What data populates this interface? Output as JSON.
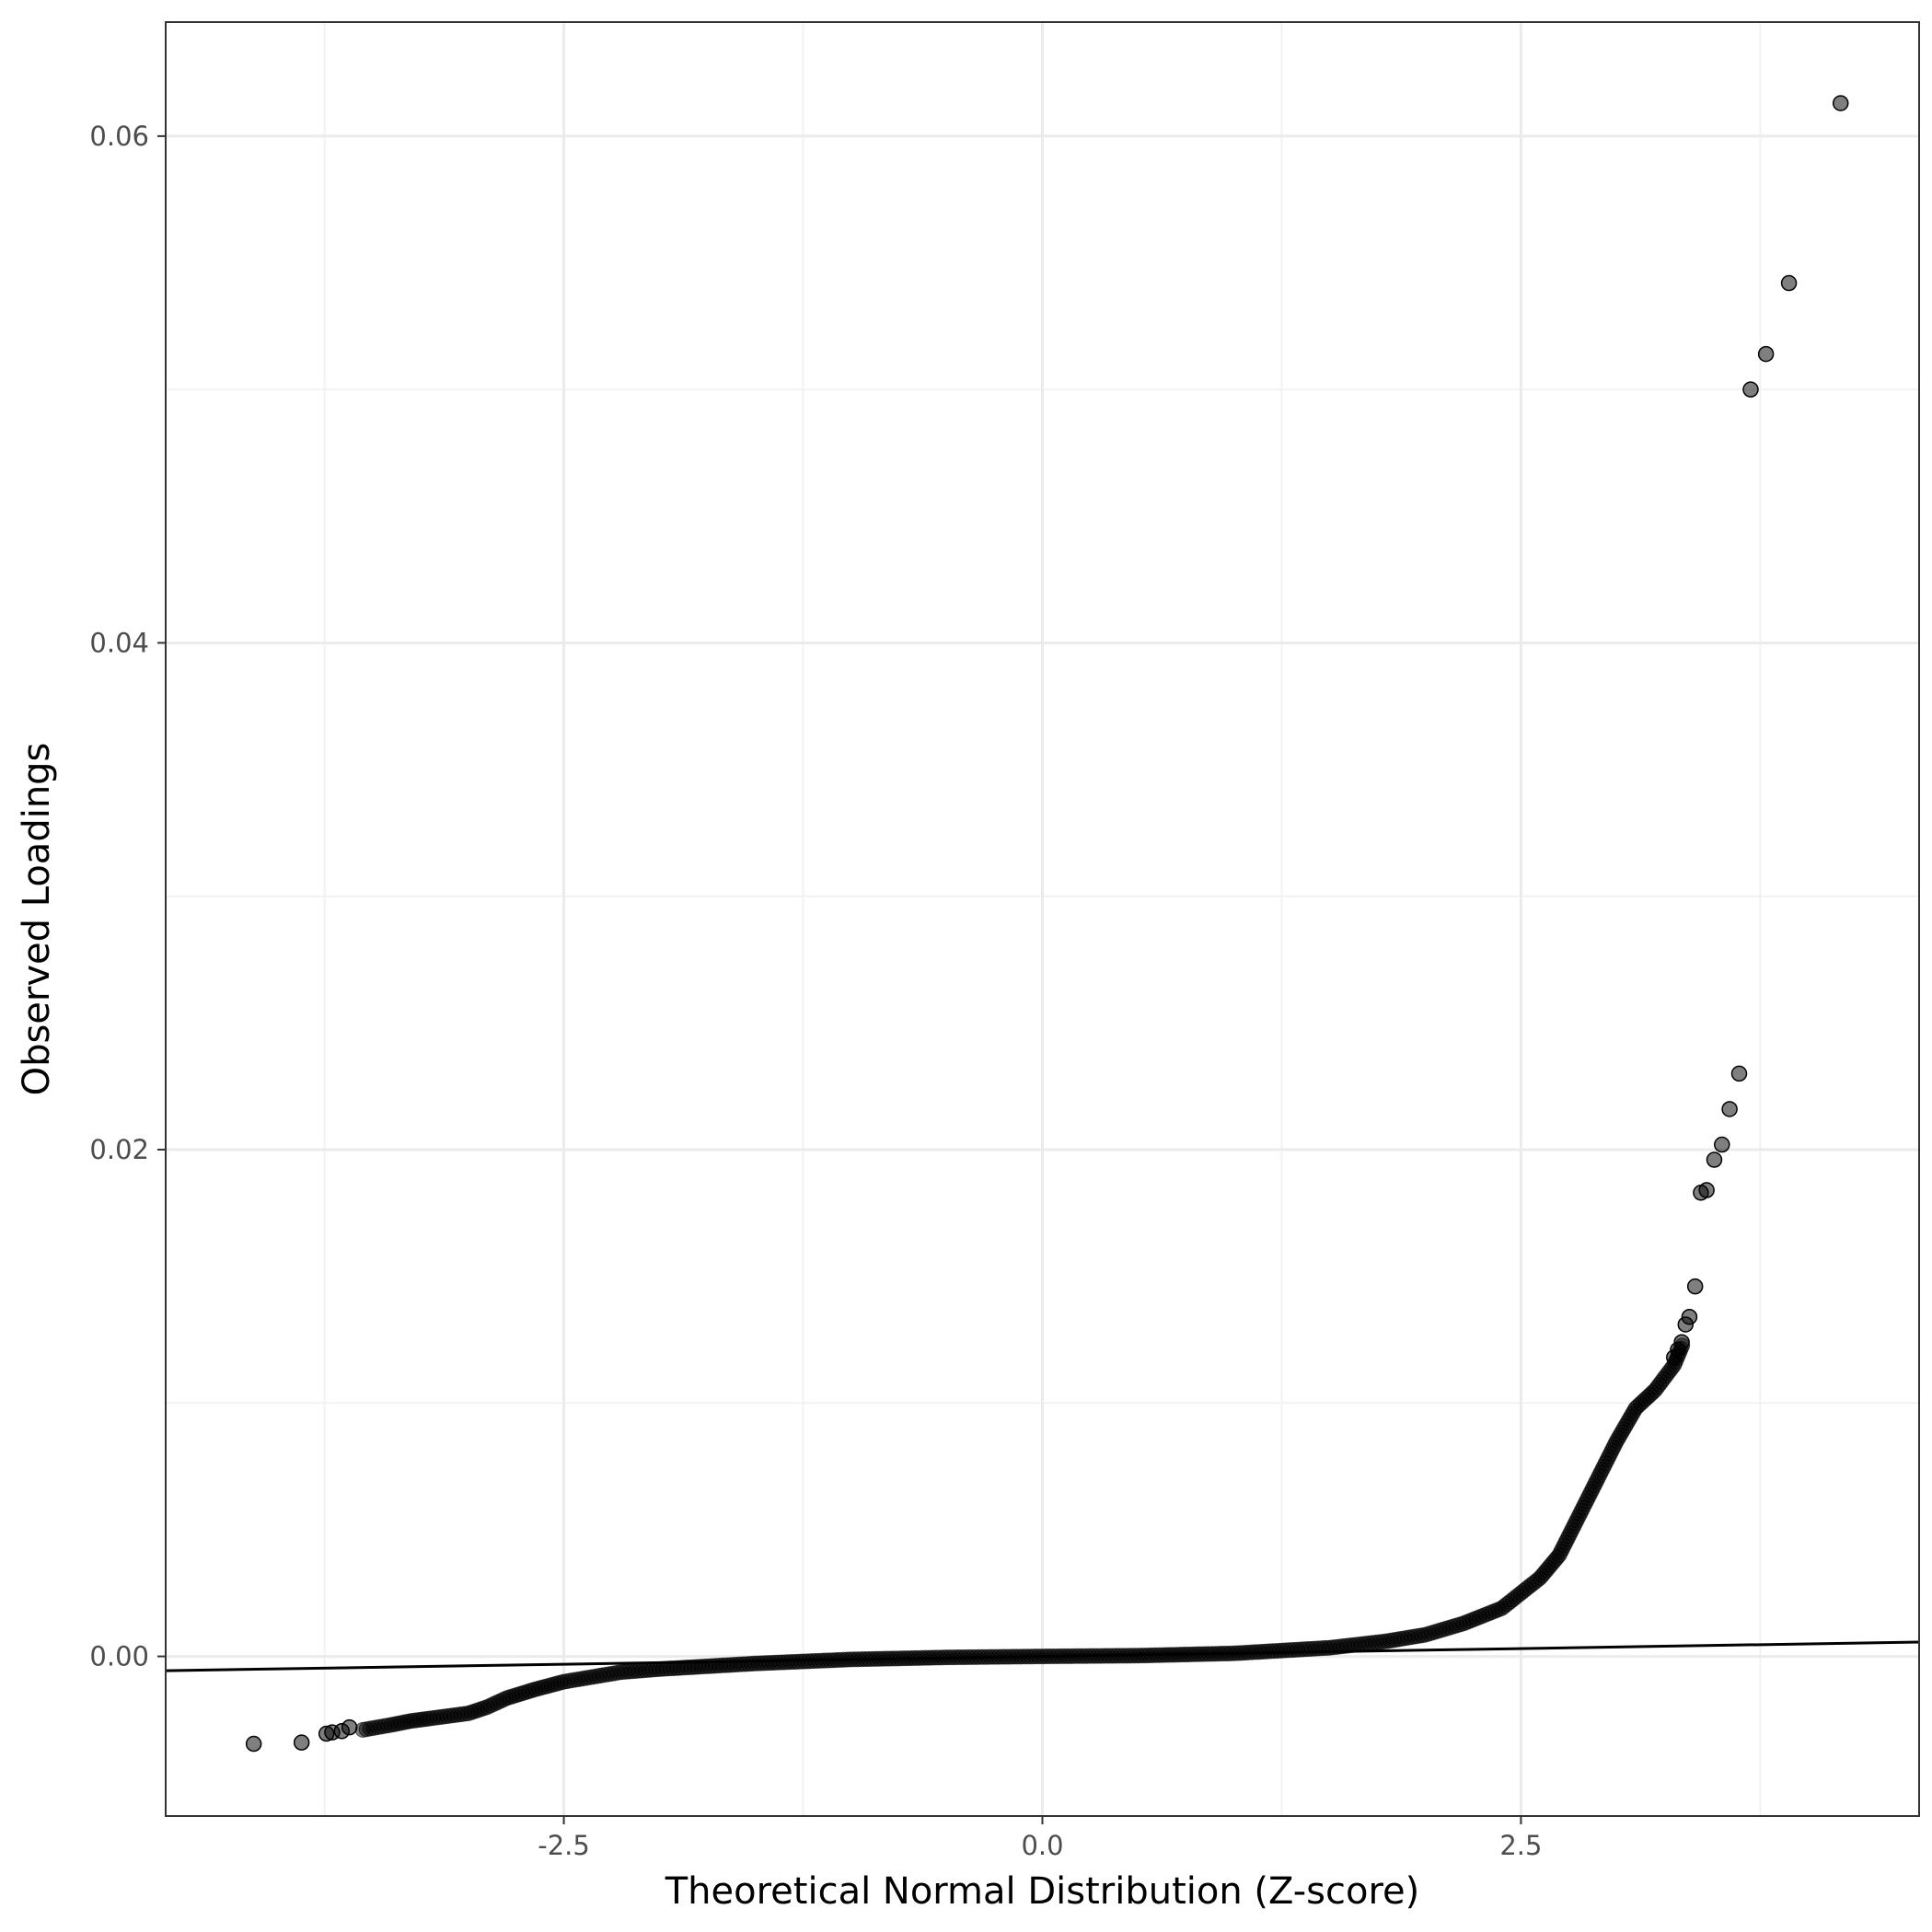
{
  "chart_data": {
    "type": "scatter",
    "title": "",
    "xlabel": "Theoretical Normal Distribution (Z-score)",
    "ylabel": "Observed Loadings",
    "xlim": [
      -4.58,
      4.58
    ],
    "ylim": [
      -0.0063,
      0.0645
    ],
    "x_ticks": [
      -2.5,
      0.0,
      2.5
    ],
    "x_tick_labels": [
      "-2.5",
      "0.0",
      "2.5"
    ],
    "y_ticks": [
      0.0,
      0.02,
      0.04,
      0.06
    ],
    "y_tick_labels": [
      "0.00",
      "0.02",
      "0.04",
      "0.06"
    ],
    "grid": true,
    "legend": "none",
    "colors": {
      "points": "#000000",
      "point_alpha": 0.5,
      "reference_line": "#000000",
      "grid_major": "#ebebeb",
      "grid_minor": "#f2f2f2",
      "panel_border": "#333333"
    },
    "reference_line": {
      "slope": 0.0001235,
      "intercept": 0.0
    },
    "curve_points": [
      [
        -3.55,
        -0.0029
      ],
      [
        -3.4,
        -0.0027
      ],
      [
        -3.3,
        -0.00255
      ],
      [
        -3.2,
        -0.00245
      ],
      [
        -3.0,
        -0.00225
      ],
      [
        -2.9,
        -0.002
      ],
      [
        -2.8,
        -0.00165
      ],
      [
        -2.65,
        -0.0013
      ],
      [
        -2.5,
        -0.001
      ],
      [
        -2.2,
        -0.00062
      ],
      [
        -2.0,
        -0.0005
      ],
      [
        -1.5,
        -0.00028
      ],
      [
        -1.0,
        -0.00012
      ],
      [
        -0.5,
        -4e-05
      ],
      [
        0.0,
        0.0
      ],
      [
        0.5,
        3e-05
      ],
      [
        1.0,
        0.00012
      ],
      [
        1.5,
        0.00034
      ],
      [
        1.8,
        0.0006
      ],
      [
        2.0,
        0.00085
      ],
      [
        2.2,
        0.0013
      ],
      [
        2.4,
        0.0019
      ],
      [
        2.5,
        0.0025
      ],
      [
        2.6,
        0.0031
      ],
      [
        2.7,
        0.004
      ],
      [
        2.8,
        0.0055
      ],
      [
        2.9,
        0.007
      ],
      [
        3.0,
        0.0085
      ],
      [
        3.1,
        0.0098
      ],
      [
        3.2,
        0.0105
      ],
      [
        3.3,
        0.0115
      ],
      [
        3.35,
        0.0124
      ]
    ],
    "outliers": [
      {
        "x": -4.12,
        "y": -0.00345
      },
      {
        "x": -3.87,
        "y": -0.0034
      },
      {
        "x": -3.74,
        "y": -0.00305
      },
      {
        "x": -3.71,
        "y": -0.003
      },
      {
        "x": -3.66,
        "y": -0.00295
      },
      {
        "x": -3.62,
        "y": -0.0028
      },
      {
        "x": 3.3,
        "y": 0.0118
      },
      {
        "x": 3.32,
        "y": 0.0121
      },
      {
        "x": 3.34,
        "y": 0.0124
      },
      {
        "x": 3.36,
        "y": 0.0131
      },
      {
        "x": 3.38,
        "y": 0.0134
      },
      {
        "x": 3.41,
        "y": 0.0146
      },
      {
        "x": 3.44,
        "y": 0.0183
      },
      {
        "x": 3.47,
        "y": 0.0184
      },
      {
        "x": 3.51,
        "y": 0.0196
      },
      {
        "x": 3.55,
        "y": 0.0202
      },
      {
        "x": 3.59,
        "y": 0.0216
      },
      {
        "x": 3.64,
        "y": 0.023
      },
      {
        "x": 3.7,
        "y": 0.05
      },
      {
        "x": 3.78,
        "y": 0.0514
      },
      {
        "x": 3.9,
        "y": 0.0542
      },
      {
        "x": 4.17,
        "y": 0.0613
      }
    ]
  }
}
